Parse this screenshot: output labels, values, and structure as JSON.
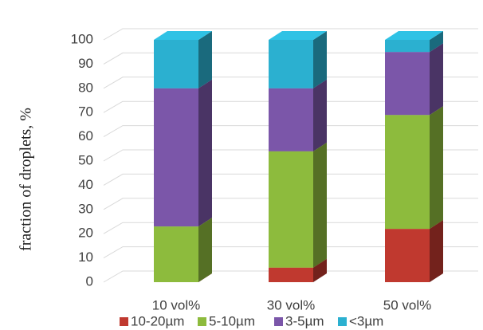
{
  "chart_data": {
    "type": "bar3d_stacked",
    "y_label": "fraction of droplets, %",
    "categories": [
      "10 vol%",
      "30 vol%",
      "50 vol%"
    ],
    "series": [
      {
        "name": "10-20µm",
        "color": "#c0392f",
        "values": [
          0,
          6,
          22
        ]
      },
      {
        "name": "5-10µm",
        "color": "#8dbb3d",
        "values": [
          23,
          48,
          47
        ]
      },
      {
        "name": "3-5µm",
        "color": "#7b56a9",
        "values": [
          57,
          26,
          26
        ]
      },
      {
        "name": "<3µm",
        "color": "#2bb0d0",
        "values": [
          20,
          20,
          5
        ]
      }
    ],
    "ylim": [
      0,
      100
    ],
    "yticks": [
      0,
      10,
      20,
      30,
      40,
      50,
      60,
      70,
      80,
      90,
      100
    ],
    "grid": true
  }
}
